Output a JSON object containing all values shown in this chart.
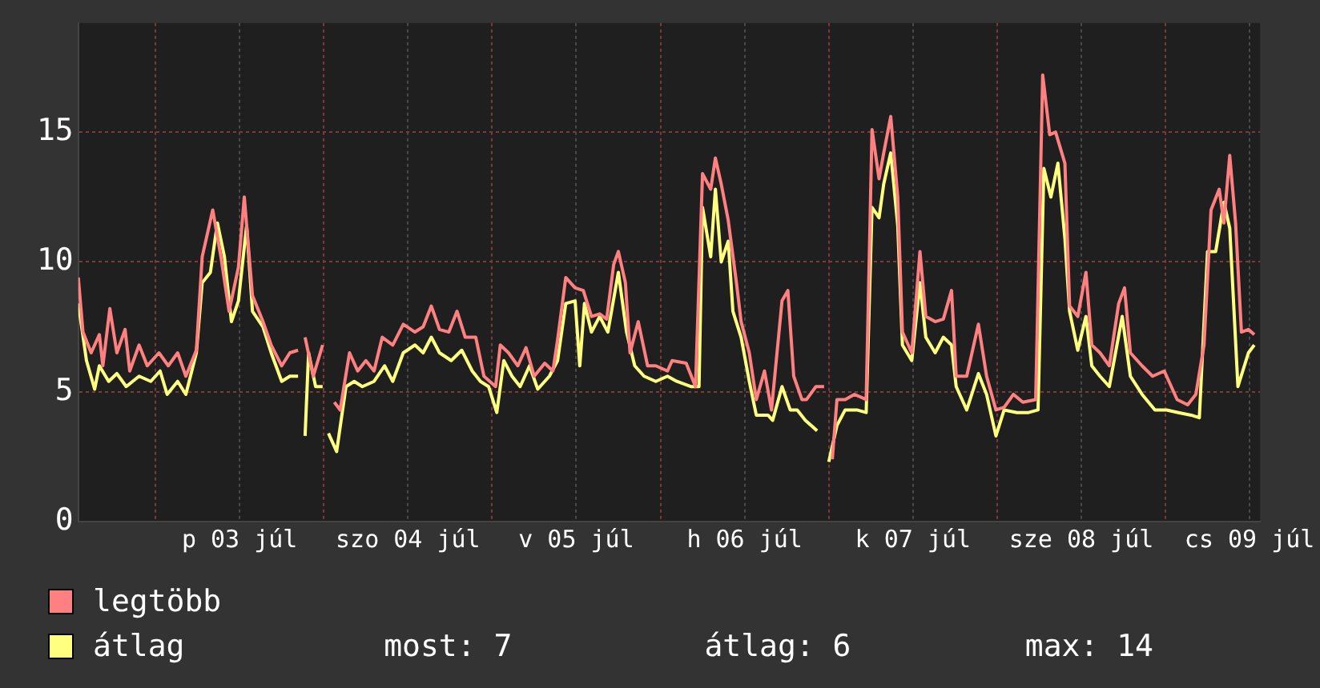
{
  "chart_data": {
    "type": "line",
    "xlim": [
      "--07-02T13:00",
      "--07-09T13:30"
    ],
    "xticks": [
      {
        "value": "--07-03T00:00",
        "label": null
      },
      {
        "value": "--07-03T12:00",
        "label": "p 03 júl"
      },
      {
        "value": "--07-04T00:00",
        "label": null
      },
      {
        "value": "--07-04T12:00",
        "label": "szo 04 júl"
      },
      {
        "value": "--07-05T00:00",
        "label": null
      },
      {
        "value": "--07-05T12:00",
        "label": "v 05 júl"
      },
      {
        "value": "--07-06T00:00",
        "label": null
      },
      {
        "value": "--07-06T12:00",
        "label": "h 06 júl"
      },
      {
        "value": "--07-07T00:00",
        "label": null
      },
      {
        "value": "--07-07T12:00",
        "label": "k 07 júl"
      },
      {
        "value": "--07-08T00:00",
        "label": null
      },
      {
        "value": "--07-08T12:00",
        "label": "sze 08 júl"
      },
      {
        "value": "--07-09T00:00",
        "label": null
      },
      {
        "value": "--07-09T12:00",
        "label": "cs 09 júl"
      }
    ],
    "ylim": [
      0,
      19.2
    ],
    "yticks": [
      0,
      5,
      10,
      15
    ],
    "grid": true,
    "legend": "bottom",
    "annotations": [
      "most: 7",
      "átlag: 6",
      "max: 14"
    ],
    "series": [
      {
        "name": "legtöbb",
        "color": "#ff8080",
        "x": [
          "--07-02T13:00",
          "--07-02T13:40",
          "--07-02T14:50",
          "--07-02T16:00",
          "--07-02T16:30",
          "--07-02T17:30",
          "--07-02T18:30",
          "--07-02T19:40",
          "--07-02T20:20",
          "--07-02T21:40",
          "--07-02T22:50",
          "--07-03T00:30",
          "--07-03T01:50",
          "--07-03T03:10",
          "--07-03T04:20",
          "--07-03T05:50",
          "--07-03T06:40",
          "--07-03T08:10",
          "--07-03T09:20",
          "--07-03T10:30",
          "--07-03T11:50",
          "--07-03T12:40",
          "--07-03T13:50",
          "--07-03T15:20",
          "--07-03T16:30",
          "--07-03T18:00",
          "--07-03T19:10",
          "--07-03T20:20",
          "--07-03T20:50",
          "--07-03T21:20",
          "--07-03T22:30",
          "--07-03T23:50",
          "--07-04T00:10",
          "--07-04T01:30",
          "--07-04T02:20",
          "--07-04T03:40",
          "--07-04T04:50",
          "--07-04T06:00",
          "--07-04T07:10",
          "--07-04T08:20",
          "--07-04T09:50",
          "--07-04T11:20",
          "--07-04T13:00",
          "--07-04T14:10",
          "--07-04T15:20",
          "--07-04T16:30",
          "--07-04T17:50",
          "--07-04T19:00",
          "--07-04T20:10",
          "--07-04T21:40",
          "--07-04T22:50",
          "--07-05T00:30",
          "--07-05T01:10",
          "--07-05T02:20",
          "--07-05T03:40",
          "--07-05T04:50",
          "--07-05T06:00",
          "--07-05T07:30",
          "--07-05T08:40",
          "--07-05T09:20",
          "--07-05T10:30",
          "--07-05T11:50",
          "--07-05T13:00",
          "--07-05T14:10",
          "--07-05T15:20",
          "--07-05T16:20",
          "--07-05T17:20",
          "--07-05T18:00",
          "--07-05T19:00",
          "--07-05T19:40",
          "--07-05T20:50",
          "--07-05T22:10",
          "--07-05T23:20",
          "--07-06T01:00",
          "--07-06T01:40",
          "--07-06T03:40",
          "--07-06T05:00",
          "--07-06T06:00",
          "--07-06T07:10",
          "--07-06T07:50",
          "--07-06T08:40",
          "--07-06T09:40",
          "--07-06T10:50",
          "--07-06T11:30",
          "--07-06T12:40",
          "--07-06T13:40",
          "--07-06T14:50",
          "--07-06T15:50",
          "--07-06T17:20",
          "--07-06T18:10",
          "--07-06T19:00",
          "--07-06T20:10",
          "--07-06T20:50",
          "--07-06T22:10",
          "--07-06T23:20",
          "--07-06T23:50",
          "--07-07T00:30",
          "--07-07T01:10",
          "--07-07T02:20",
          "--07-07T03:40",
          "--07-07T05:20",
          "--07-07T06:10",
          "--07-07T07:10",
          "--07-07T07:50",
          "--07-07T08:50",
          "--07-07T09:50",
          "--07-07T10:30",
          "--07-07T11:50",
          "--07-07T13:00",
          "--07-07T13:50",
          "--07-07T15:10",
          "--07-07T16:20",
          "--07-07T17:30",
          "--07-07T18:10",
          "--07-07T19:40",
          "--07-07T21:20",
          "--07-07T22:30",
          "--07-07T23:50",
          "--07-08T01:00",
          "--07-08T02:20",
          "--07-08T03:40",
          "--07-08T05:30",
          "--07-08T06:30",
          "--07-08T07:30",
          "--07-08T08:20",
          "--07-08T09:40",
          "--07-08T10:20",
          "--07-08T11:30",
          "--07-08T12:40",
          "--07-08T13:30",
          "--07-08T14:40",
          "--07-08T16:00",
          "--07-08T17:20",
          "--07-08T18:10",
          "--07-08T19:00",
          "--07-08T20:40",
          "--07-08T22:10",
          "--07-08T23:50",
          "--07-09T01:40",
          "--07-09T03:10",
          "--07-09T04:20",
          "--07-09T05:30",
          "--07-09T06:30",
          "--07-09T07:40",
          "--07-09T08:20",
          "--07-09T09:10",
          "--07-09T10:00",
          "--07-09T10:50",
          "--07-09T11:50",
          "--07-09T12:40"
        ],
        "values": [
          9.4,
          7.3,
          6.5,
          7.2,
          6.0,
          8.2,
          6.5,
          7.4,
          5.8,
          6.8,
          6.0,
          6.5,
          6.0,
          6.5,
          5.6,
          6.6,
          10.2,
          12.0,
          10.2,
          8.1,
          9.8,
          12.5,
          8.7,
          7.7,
          6.8,
          6.0,
          6.5,
          6.6,
          null,
          7.1,
          5.6,
          6.8,
          null,
          4.6,
          4.3,
          6.5,
          5.8,
          6.2,
          5.8,
          7.1,
          6.8,
          7.6,
          7.3,
          7.5,
          8.3,
          7.4,
          7.3,
          8.1,
          7.1,
          7.1,
          5.6,
          5.2,
          6.8,
          6.5,
          6.0,
          6.7,
          5.6,
          6.1,
          5.8,
          7.0,
          9.4,
          9.0,
          8.9,
          7.9,
          8.0,
          7.8,
          9.9,
          10.4,
          9.2,
          6.5,
          7.7,
          6.0,
          6.0,
          5.8,
          6.2,
          6.1,
          5.2,
          13.4,
          12.8,
          14.0,
          13.0,
          11.6,
          9.2,
          7.7,
          6.5,
          4.7,
          5.8,
          4.3,
          8.5,
          8.9,
          5.6,
          4.7,
          4.7,
          5.2,
          5.2,
          null,
          2.4,
          4.7,
          4.7,
          4.9,
          4.7,
          15.1,
          13.2,
          14.2,
          15.6,
          12.5,
          7.3,
          6.5,
          10.4,
          7.9,
          7.7,
          7.8,
          8.9,
          5.6,
          5.6,
          7.6,
          5.6,
          4.3,
          4.4,
          4.9,
          4.6,
          4.7,
          17.2,
          14.9,
          15.0,
          13.8,
          8.3,
          7.9,
          9.6,
          6.8,
          6.5,
          6.0,
          8.4,
          9.0,
          6.5,
          6.0,
          5.6,
          5.8,
          4.7,
          4.5,
          4.9,
          6.8,
          12.0,
          12.8,
          11.5,
          14.1,
          11.5,
          7.3,
          7.4,
          7.2
        ]
      },
      {
        "name": "átlag",
        "color": "#ffff80",
        "x": [
          "--07-02T13:00",
          "--07-02T14:10",
          "--07-02T15:20",
          "--07-02T16:00",
          "--07-02T17:20",
          "--07-02T18:30",
          "--07-02T19:50",
          "--07-02T21:40",
          "--07-02T23:20",
          "--07-03T00:40",
          "--07-03T01:40",
          "--07-03T03:10",
          "--07-03T04:20",
          "--07-03T05:50",
          "--07-03T06:40",
          "--07-03T07:50",
          "--07-03T08:50",
          "--07-03T09:50",
          "--07-03T10:50",
          "--07-03T11:50",
          "--07-03T13:00",
          "--07-03T13:50",
          "--07-03T15:20",
          "--07-03T16:30",
          "--07-03T18:00",
          "--07-03T19:10",
          "--07-03T20:20",
          "--07-03T20:50",
          "--07-03T21:20",
          "--07-03T21:50",
          "--07-03T22:50",
          "--07-03T23:50",
          "--07-04T00:10",
          "--07-04T00:40",
          "--07-04T01:50",
          "--07-04T03:10",
          "--07-04T04:20",
          "--07-04T05:30",
          "--07-04T07:10",
          "--07-04T08:40",
          "--07-04T09:50",
          "--07-04T11:20",
          "--07-04T13:00",
          "--07-04T14:10",
          "--07-04T15:20",
          "--07-04T16:30",
          "--07-04T18:10",
          "--07-04T19:40",
          "--07-04T21:10",
          "--07-04T22:20",
          "--07-04T23:30",
          "--07-05T00:40",
          "--07-05T01:40",
          "--07-05T02:50",
          "--07-05T04:00",
          "--07-05T05:20",
          "--07-05T06:30",
          "--07-05T08:10",
          "--07-05T09:20",
          "--07-05T10:30",
          "--07-05T11:50",
          "--07-05T12:30",
          "--07-05T13:10",
          "--07-05T14:10",
          "--07-05T15:20",
          "--07-05T16:30",
          "--07-05T18:00",
          "--07-05T19:10",
          "--07-05T20:20",
          "--07-05T21:40",
          "--07-05T23:20",
          "--07-06T01:00",
          "--07-06T02:20",
          "--07-06T04:20",
          "--07-06T05:30",
          "--07-06T06:00",
          "--07-06T07:10",
          "--07-06T07:50",
          "--07-06T08:40",
          "--07-06T09:40",
          "--07-06T10:20",
          "--07-06T11:30",
          "--07-06T12:40",
          "--07-06T13:40",
          "--07-06T15:20",
          "--07-06T16:00",
          "--07-06T17:20",
          "--07-06T18:30",
          "--07-06T19:30",
          "--07-06T20:40",
          "--07-06T22:20",
          "--07-06T23:00",
          "--07-07T00:00",
          "--07-07T01:10",
          "--07-07T02:20",
          "--07-07T04:00",
          "--07-07T05:20",
          "--07-07T06:10",
          "--07-07T07:10",
          "--07-07T07:50",
          "--07-07T08:50",
          "--07-07T09:50",
          "--07-07T10:30",
          "--07-07T11:50",
          "--07-07T13:00",
          "--07-07T13:50",
          "--07-07T15:10",
          "--07-07T16:20",
          "--07-07T17:30",
          "--07-07T18:10",
          "--07-07T19:40",
          "--07-07T21:20",
          "--07-07T22:30",
          "--07-07T23:50",
          "--07-08T01:00",
          "--07-08T02:50",
          "--07-08T04:30",
          "--07-08T05:50",
          "--07-08T06:40",
          "--07-08T07:40",
          "--07-08T08:40",
          "--07-08T09:40",
          "--07-08T10:20",
          "--07-08T11:30",
          "--07-08T12:40",
          "--07-08T13:30",
          "--07-08T14:40",
          "--07-08T16:00",
          "--07-08T17:50",
          "--07-08T19:00",
          "--07-08T20:40",
          "--07-08T22:30",
          "--07-09T00:10",
          "--07-09T01:50",
          "--07-09T03:40",
          "--07-09T04:50",
          "--07-09T06:00",
          "--07-09T07:10",
          "--07-09T08:20",
          "--07-09T09:10",
          "--07-09T10:20",
          "--07-09T11:50",
          "--07-09T12:40"
        ],
        "values": [
          8.4,
          6.2,
          5.1,
          6.0,
          5.4,
          5.7,
          5.2,
          5.6,
          5.4,
          5.8,
          4.9,
          5.4,
          4.9,
          6.5,
          9.2,
          9.6,
          11.5,
          10.2,
          7.7,
          8.5,
          11.4,
          8.1,
          7.5,
          6.5,
          5.4,
          5.6,
          5.6,
          null,
          3.3,
          6.5,
          5.2,
          5.2,
          null,
          3.4,
          2.7,
          5.2,
          5.4,
          5.2,
          5.4,
          6.0,
          5.4,
          6.5,
          6.8,
          6.5,
          7.1,
          6.5,
          6.2,
          6.6,
          5.8,
          5.4,
          5.2,
          4.2,
          6.2,
          5.6,
          5.2,
          6.0,
          5.1,
          5.6,
          6.2,
          8.4,
          8.5,
          6.0,
          8.4,
          7.3,
          7.9,
          7.3,
          9.6,
          7.3,
          6.0,
          5.6,
          5.4,
          5.6,
          5.4,
          5.2,
          5.2,
          12.1,
          10.2,
          12.8,
          10.0,
          10.8,
          8.1,
          7.1,
          5.4,
          4.1,
          4.1,
          3.9,
          5.2,
          4.3,
          4.3,
          3.9,
          3.5,
          null,
          2.3,
          3.7,
          4.3,
          4.3,
          4.2,
          12.1,
          11.7,
          13.0,
          14.2,
          11.4,
          6.8,
          6.2,
          9.2,
          7.1,
          6.5,
          7.1,
          6.8,
          5.2,
          4.3,
          5.7,
          4.9,
          3.3,
          4.3,
          4.2,
          4.2,
          4.3,
          13.6,
          12.5,
          13.8,
          10.9,
          8.1,
          6.6,
          7.9,
          6.0,
          5.6,
          5.2,
          7.9,
          5.6,
          4.9,
          4.3,
          4.3,
          4.2,
          4.1,
          4.0,
          10.4,
          10.4,
          12.3,
          11.3,
          5.2,
          6.5,
          6.8
        ]
      }
    ]
  }
}
